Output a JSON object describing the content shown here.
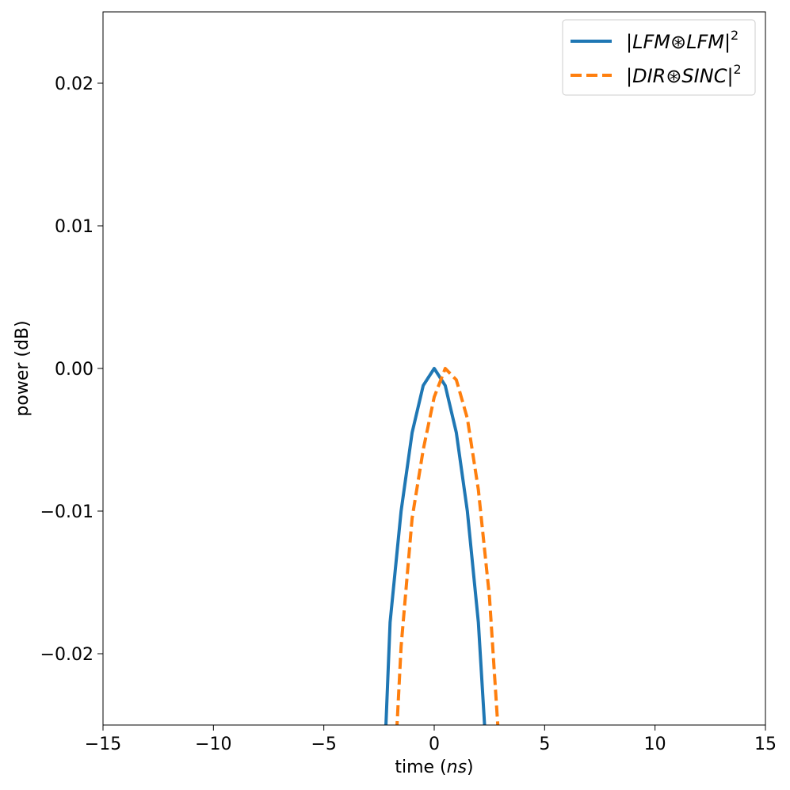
{
  "chart_data": {
    "type": "line",
    "xlabel": "time (ns)",
    "xlabel_parts": [
      "time (",
      "ns",
      ")"
    ],
    "ylabel": "power (dB)",
    "xlim": [
      -15,
      15
    ],
    "ylim": [
      -0.025,
      0.025
    ],
    "x_ticks": [
      -15,
      -10,
      -5,
      0,
      5,
      10,
      15
    ],
    "x_tick_labels": [
      "−15",
      "−10",
      "−5",
      "0",
      "5",
      "10",
      "15"
    ],
    "y_ticks": [
      -0.02,
      -0.01,
      0.0,
      0.01,
      0.02
    ],
    "y_tick_labels": [
      "−0.02",
      "−0.01",
      "0.00",
      "0.01",
      "0.02"
    ],
    "grid": false,
    "legend_position": "top-right",
    "series": [
      {
        "name": "|LFM⊛LFM|²",
        "name_base": "|LFM⊛LFM|",
        "name_sup": "2",
        "color": "#1f77b4",
        "dash": "solid",
        "x": [
          -2.2,
          -2.0,
          -1.5,
          -1.0,
          -0.5,
          0.0,
          0.5,
          1.0,
          1.5,
          2.0,
          2.3
        ],
        "y": [
          -0.0255,
          -0.0178,
          -0.01,
          -0.0045,
          -0.0012,
          0.0,
          -0.0012,
          -0.0045,
          -0.01,
          -0.0178,
          -0.0255
        ]
      },
      {
        "name": "|DIR⊛SINC|²",
        "name_base": "|DIR⊛SINC|",
        "name_sup": "2",
        "color": "#ff7f0e",
        "dash": "dashed",
        "x": [
          -1.7,
          -1.5,
          -1.0,
          -0.5,
          0.0,
          0.5,
          1.0,
          1.5,
          2.0,
          2.5,
          2.9
        ],
        "y": [
          -0.0255,
          -0.0195,
          -0.0105,
          -0.0057,
          -0.002,
          0.0,
          -0.0008,
          -0.0035,
          -0.0085,
          -0.016,
          -0.0255
        ]
      }
    ]
  }
}
